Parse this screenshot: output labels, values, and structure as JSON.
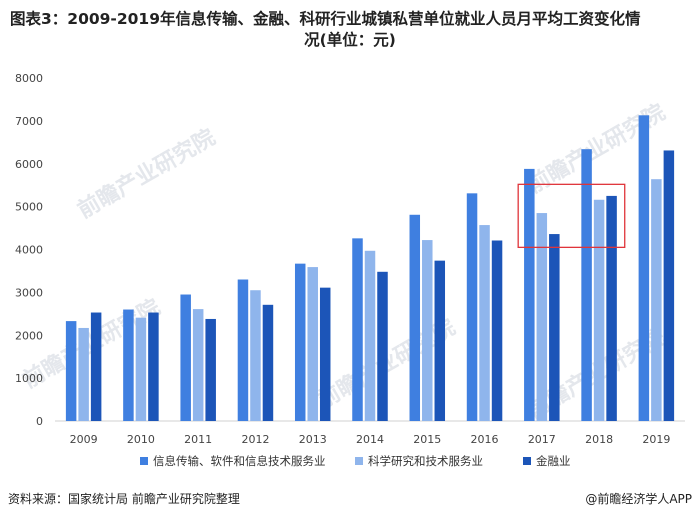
{
  "title": {
    "line1": "图表3：2009-2019年信息传输、金融、科研行业城镇私营单位就业人员月平均工资变化情",
    "line2": "况(单位：元)"
  },
  "footer": {
    "source": "资料来源：国家统计局 前瞻产业研究院整理",
    "brand": "@前瞻经济学人APP"
  },
  "watermark": "前瞻产业研究院",
  "colors": {
    "series1": "#3f7fe0",
    "series2": "#8fb5ec",
    "series3": "#1c55b8",
    "highlight": "#e0343a"
  },
  "chart_data": {
    "type": "bar",
    "categories": [
      "2009",
      "2010",
      "2011",
      "2012",
      "2013",
      "2014",
      "2015",
      "2016",
      "2017",
      "2018",
      "2019"
    ],
    "series": [
      {
        "name": "信息传输、软件和信息技术服务业",
        "values": [
          2330,
          2600,
          2950,
          3300,
          3670,
          4260,
          4810,
          5310,
          5880,
          6340,
          7130
        ]
      },
      {
        "name": "科学研究和技术服务业",
        "values": [
          2170,
          2410,
          2610,
          3050,
          3590,
          3970,
          4220,
          4570,
          4850,
          5160,
          5640
        ]
      },
      {
        "name": "金融业",
        "values": [
          2530,
          2530,
          2380,
          2710,
          3110,
          3480,
          3740,
          4210,
          4360,
          5250,
          6310
        ]
      }
    ],
    "yticks": [
      0,
      1000,
      2000,
      3000,
      4000,
      5000,
      6000,
      7000,
      8000
    ],
    "ylim": [
      0,
      8000
    ],
    "legend_position": "bottom",
    "annotation": {
      "type": "highlight-box",
      "categories": [
        "2017",
        "2018"
      ]
    }
  }
}
